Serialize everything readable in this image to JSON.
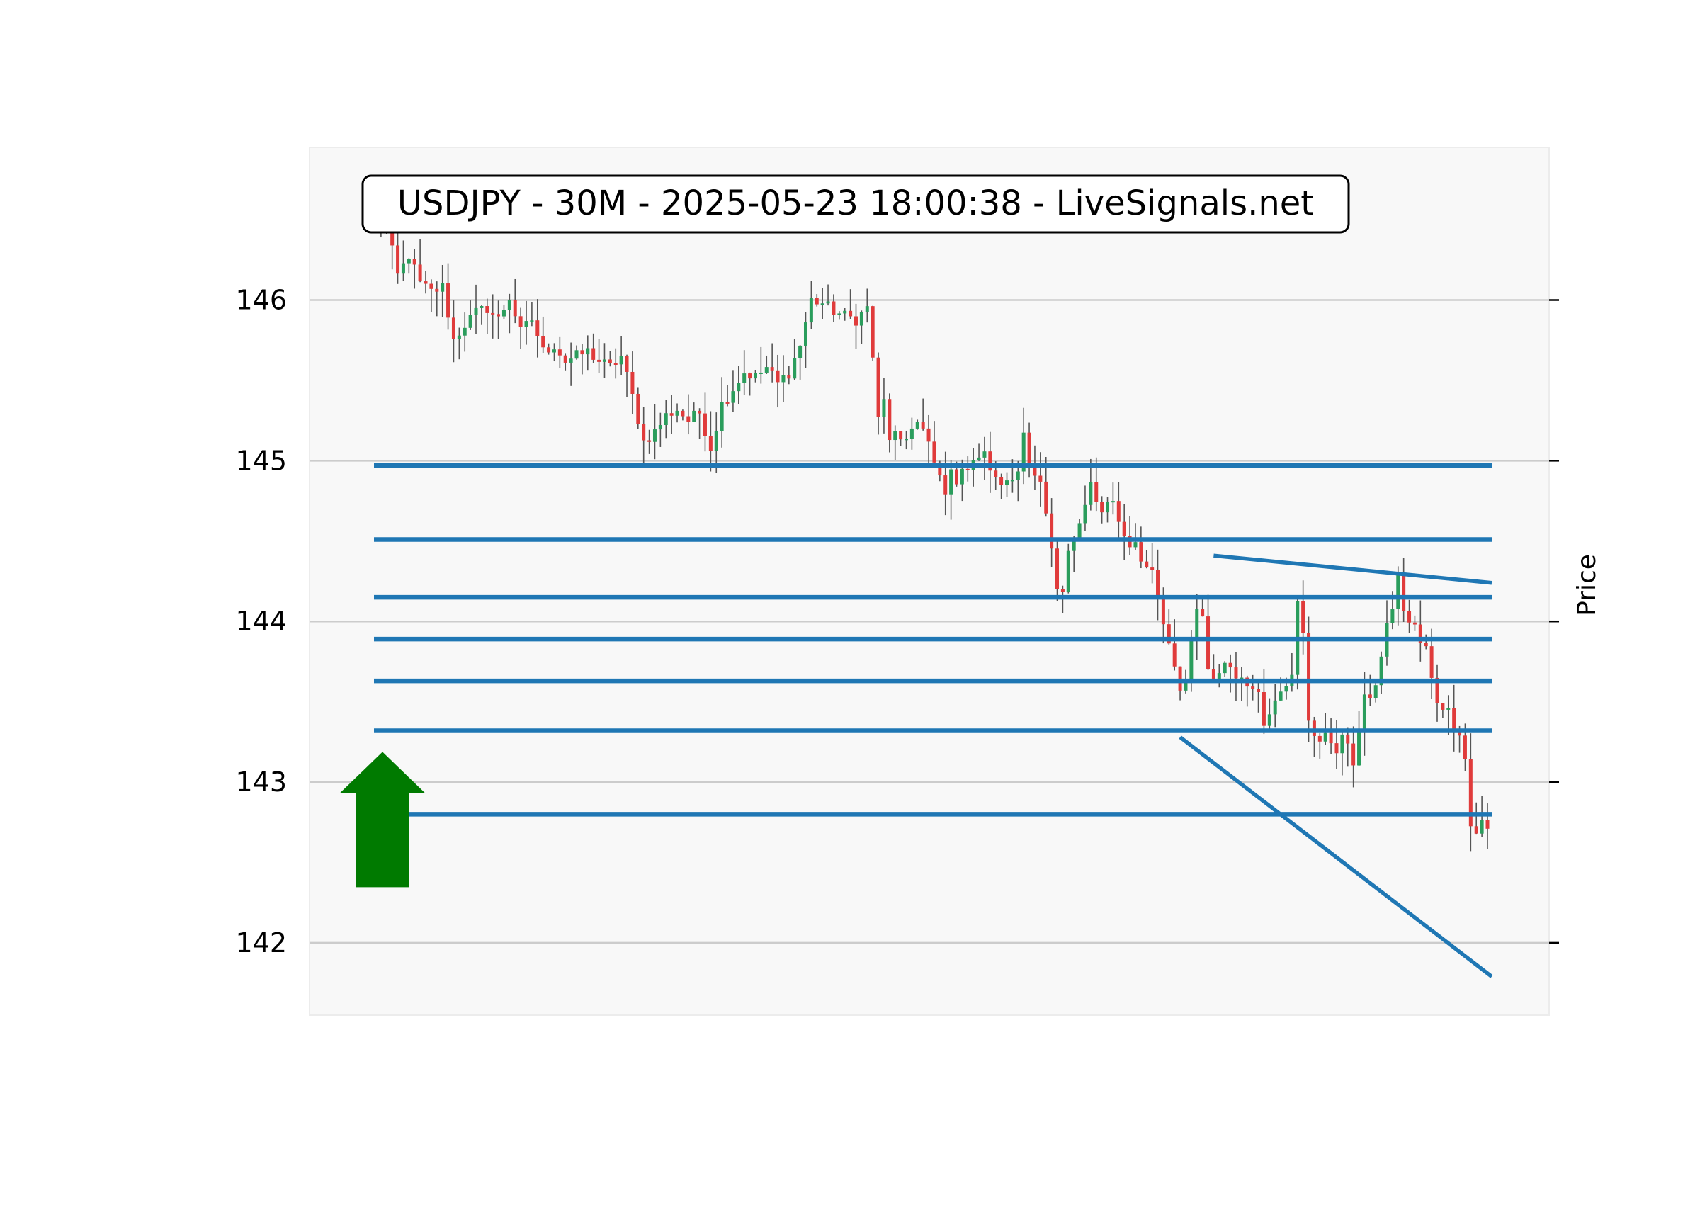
{
  "chart_data": {
    "type": "candlestick",
    "title": "USDJPY - 30M - 2025-05-23 18:00:38 - LiveSignals.net",
    "symbol": "USDJPY",
    "timeframe": "30M",
    "timestamp": "2025-05-23 18:00:38",
    "source": "LiveSignals.net",
    "ylabel": "Price",
    "ylim": [
      141.55,
      146.95
    ],
    "yticks": [
      142,
      143,
      144,
      145,
      146
    ],
    "ytick_labels": [
      "142",
      "143",
      "144",
      "145",
      "146"
    ],
    "y_axis_position": "right-label-left-ticks",
    "grid": "horizontal",
    "colors": {
      "up": "#2a9d5c",
      "down": "#e03b3b",
      "wick": "#555555",
      "level": "#1f77b4",
      "arrow": "#007a00",
      "background": "#f8f8f8",
      "grid": "#cccccc"
    },
    "candle_count": 200,
    "close_path": [
      [
        0,
        146.5
      ],
      [
        2,
        146.45
      ],
      [
        4,
        146.15
      ],
      [
        6,
        146.28
      ],
      [
        8,
        146.1
      ],
      [
        10,
        146.05
      ],
      [
        12,
        146.08
      ],
      [
        14,
        145.75
      ],
      [
        16,
        145.85
      ],
      [
        18,
        145.92
      ],
      [
        20,
        145.95
      ],
      [
        22,
        145.88
      ],
      [
        24,
        146.02
      ],
      [
        26,
        145.8
      ],
      [
        28,
        145.88
      ],
      [
        30,
        145.68
      ],
      [
        32,
        145.72
      ],
      [
        34,
        145.62
      ],
      [
        36,
        145.65
      ],
      [
        38,
        145.68
      ],
      [
        40,
        145.62
      ],
      [
        42,
        145.58
      ],
      [
        44,
        145.65
      ],
      [
        46,
        145.4
      ],
      [
        48,
        145.12
      ],
      [
        50,
        145.18
      ],
      [
        52,
        145.28
      ],
      [
        54,
        145.32
      ],
      [
        56,
        145.25
      ],
      [
        58,
        145.3
      ],
      [
        60,
        145.08
      ],
      [
        62,
        145.35
      ],
      [
        64,
        145.45
      ],
      [
        66,
        145.55
      ],
      [
        68,
        145.52
      ],
      [
        70,
        145.58
      ],
      [
        72,
        145.48
      ],
      [
        74,
        145.55
      ],
      [
        76,
        145.72
      ],
      [
        78,
        146.0
      ],
      [
        80,
        145.98
      ],
      [
        82,
        145.93
      ],
      [
        84,
        145.9
      ],
      [
        86,
        145.88
      ],
      [
        88,
        145.95
      ],
      [
        89,
        145.65
      ],
      [
        90,
        145.25
      ],
      [
        92,
        145.38
      ],
      [
        94,
        145.1
      ],
      [
        96,
        145.18
      ],
      [
        98,
        145.05
      ],
      [
        100,
        145.2
      ],
      [
        102,
        145.25
      ],
      [
        104,
        145.22
      ],
      [
        106,
        145.12
      ],
      [
        108,
        145.0
      ],
      [
        110,
        144.9
      ],
      [
        112,
        144.82
      ],
      [
        114,
        144.92
      ],
      [
        116,
        144.88
      ],
      [
        118,
        145.0
      ],
      [
        120,
        144.92
      ],
      [
        122,
        145.02
      ],
      [
        124,
        145.05
      ],
      [
        126,
        145.0
      ],
      [
        128,
        144.88
      ],
      [
        130,
        144.85
      ],
      [
        132,
        144.88
      ],
      [
        134,
        144.92
      ],
      [
        136,
        144.95
      ],
      [
        138,
        145.2
      ],
      [
        140,
        144.85
      ],
      [
        142,
        144.9
      ],
      [
        144,
        144.78
      ],
      [
        146,
        144.55
      ],
      [
        148,
        144.25
      ],
      [
        150,
        144.15
      ],
      [
        152,
        144.45
      ],
      [
        154,
        144.5
      ],
      [
        156,
        144.6
      ],
      [
        158,
        144.72
      ],
      [
        160,
        144.88
      ],
      [
        162,
        144.7
      ],
      [
        164,
        144.65
      ],
      [
        166,
        144.75
      ],
      [
        168,
        144.72
      ],
      [
        170,
        144.55
      ],
      [
        172,
        144.48
      ],
      [
        174,
        144.5
      ],
      [
        176,
        144.38
      ],
      [
        178,
        144.35
      ],
      [
        180,
        144.3
      ],
      [
        182,
        144.12
      ],
      [
        184,
        143.95
      ],
      [
        186,
        143.85
      ],
      [
        188,
        143.65
      ],
      [
        190,
        143.55
      ],
      [
        192,
        143.75
      ],
      [
        194,
        144.05
      ],
      [
        196,
        144.1
      ],
      [
        198,
        143.68
      ],
      [
        200,
        143.62
      ]
    ],
    "tail_path": [
      [
        0,
        143.62
      ],
      [
        4,
        143.75
      ],
      [
        8,
        143.7
      ],
      [
        12,
        143.6
      ],
      [
        16,
        143.62
      ],
      [
        18,
        143.55
      ],
      [
        20,
        143.35
      ],
      [
        24,
        143.52
      ],
      [
        28,
        143.62
      ],
      [
        32,
        143.65
      ],
      [
        34,
        144.2
      ],
      [
        36,
        143.9
      ],
      [
        38,
        143.4
      ],
      [
        42,
        143.25
      ],
      [
        46,
        143.28
      ],
      [
        50,
        143.2
      ],
      [
        52,
        143.28
      ],
      [
        54,
        143.25
      ],
      [
        56,
        143.05
      ],
      [
        58,
        143.3
      ],
      [
        60,
        143.55
      ],
      [
        62,
        143.6
      ],
      [
        64,
        143.4
      ],
      [
        66,
        143.7
      ],
      [
        68,
        143.85
      ],
      [
        70,
        144.0
      ],
      [
        72,
        144.1
      ],
      [
        74,
        144.28
      ],
      [
        76,
        144.1
      ],
      [
        78,
        143.98
      ],
      [
        80,
        144.02
      ],
      [
        82,
        143.88
      ],
      [
        84,
        143.85
      ],
      [
        86,
        143.82
      ],
      [
        88,
        143.58
      ],
      [
        90,
        143.5
      ],
      [
        92,
        143.48
      ],
      [
        94,
        143.45
      ],
      [
        96,
        143.38
      ],
      [
        98,
        143.3
      ],
      [
        100,
        143.35
      ],
      [
        102,
        142.95
      ],
      [
        104,
        142.6
      ],
      [
        106,
        142.72
      ],
      [
        108,
        142.75
      ],
      [
        110,
        142.7
      ]
    ],
    "horizontal_levels": [
      144.97,
      144.51,
      144.15,
      143.89,
      143.63,
      143.32,
      142.8
    ],
    "trendlines": [
      {
        "name": "upper",
        "from": {
          "candle": 150,
          "price": 144.41
        },
        "to": {
          "candle": 199,
          "price": 144.24
        }
      },
      {
        "name": "lower",
        "from": {
          "candle": 144,
          "price": 143.28
        },
        "to": {
          "candle": 199,
          "price": 141.79
        }
      }
    ],
    "signal": {
      "direction": "up",
      "level": 142.8,
      "arrow_icon": "up-arrow-icon"
    }
  }
}
